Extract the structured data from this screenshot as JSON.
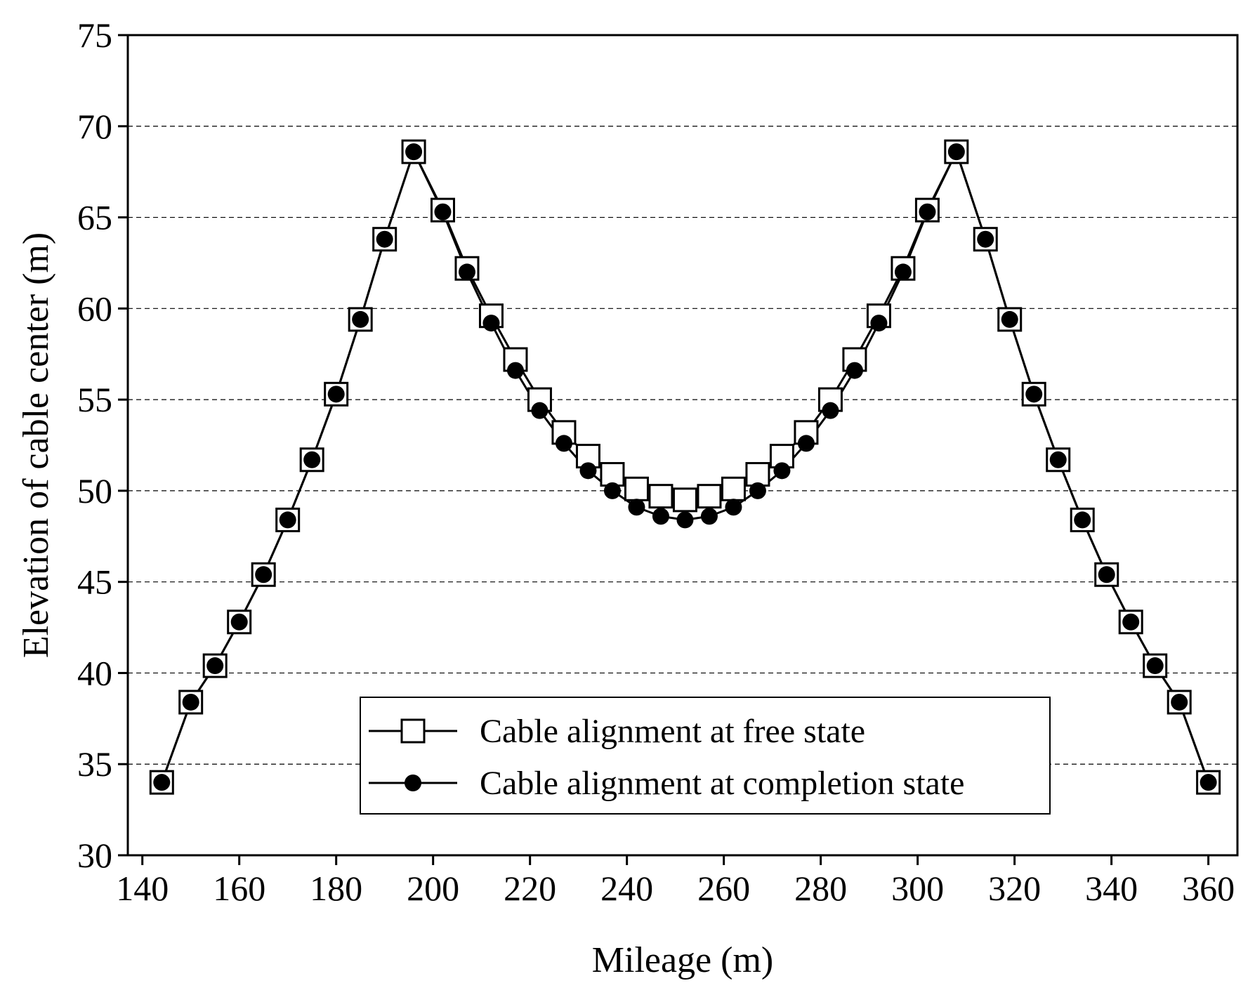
{
  "chart_data": {
    "type": "line",
    "title": "",
    "xlabel": "Mileage (m)",
    "ylabel": "Elevation of cable center (m)",
    "xlim": [
      137,
      366
    ],
    "ylim": [
      30,
      75
    ],
    "xticks": [
      140,
      160,
      180,
      200,
      220,
      240,
      260,
      280,
      300,
      320,
      340,
      360
    ],
    "yticks": [
      30,
      35,
      40,
      45,
      50,
      55,
      60,
      65,
      70,
      75
    ],
    "grid": "horizontal dashed",
    "legend_position": "bottom-center",
    "series": [
      {
        "name": "Cable alignment at free state",
        "marker": "open-square",
        "color": "#000000",
        "x": [
          144,
          150,
          155,
          160,
          165,
          170,
          175,
          180,
          185,
          190,
          196,
          202,
          207,
          212,
          217,
          222,
          227,
          232,
          237,
          242,
          247,
          252,
          257,
          262,
          267,
          272,
          277,
          282,
          287,
          292,
          297,
          302,
          308,
          314,
          319,
          324,
          329,
          334,
          339,
          344,
          349,
          354,
          360
        ],
        "y": [
          34.0,
          38.4,
          40.4,
          42.8,
          45.4,
          48.4,
          51.7,
          55.3,
          59.4,
          63.8,
          68.6,
          65.4,
          62.2,
          59.6,
          57.2,
          55.0,
          53.2,
          51.9,
          50.9,
          50.1,
          49.7,
          49.5,
          49.7,
          50.1,
          50.9,
          51.9,
          53.2,
          55.0,
          57.2,
          59.6,
          62.2,
          65.4,
          68.6,
          63.8,
          59.4,
          55.3,
          51.7,
          48.4,
          45.4,
          42.8,
          40.4,
          38.4,
          34.0
        ]
      },
      {
        "name": "Cable alignment at completion state",
        "marker": "filled-circle",
        "color": "#000000",
        "x": [
          144,
          150,
          155,
          160,
          165,
          170,
          175,
          180,
          185,
          190,
          196,
          202,
          207,
          212,
          217,
          222,
          227,
          232,
          237,
          242,
          247,
          252,
          257,
          262,
          267,
          272,
          277,
          282,
          287,
          292,
          297,
          302,
          308,
          314,
          319,
          324,
          329,
          334,
          339,
          344,
          349,
          354,
          360
        ],
        "y": [
          34.0,
          38.4,
          40.4,
          42.8,
          45.4,
          48.4,
          51.7,
          55.3,
          59.4,
          63.8,
          68.6,
          65.3,
          62.0,
          59.2,
          56.6,
          54.4,
          52.6,
          51.1,
          50.0,
          49.1,
          48.6,
          48.4,
          48.6,
          49.1,
          50.0,
          51.1,
          52.6,
          54.4,
          56.6,
          59.2,
          62.0,
          65.3,
          68.6,
          63.8,
          59.4,
          55.3,
          51.7,
          48.4,
          45.4,
          42.8,
          40.4,
          38.4,
          34.0
        ]
      }
    ]
  }
}
